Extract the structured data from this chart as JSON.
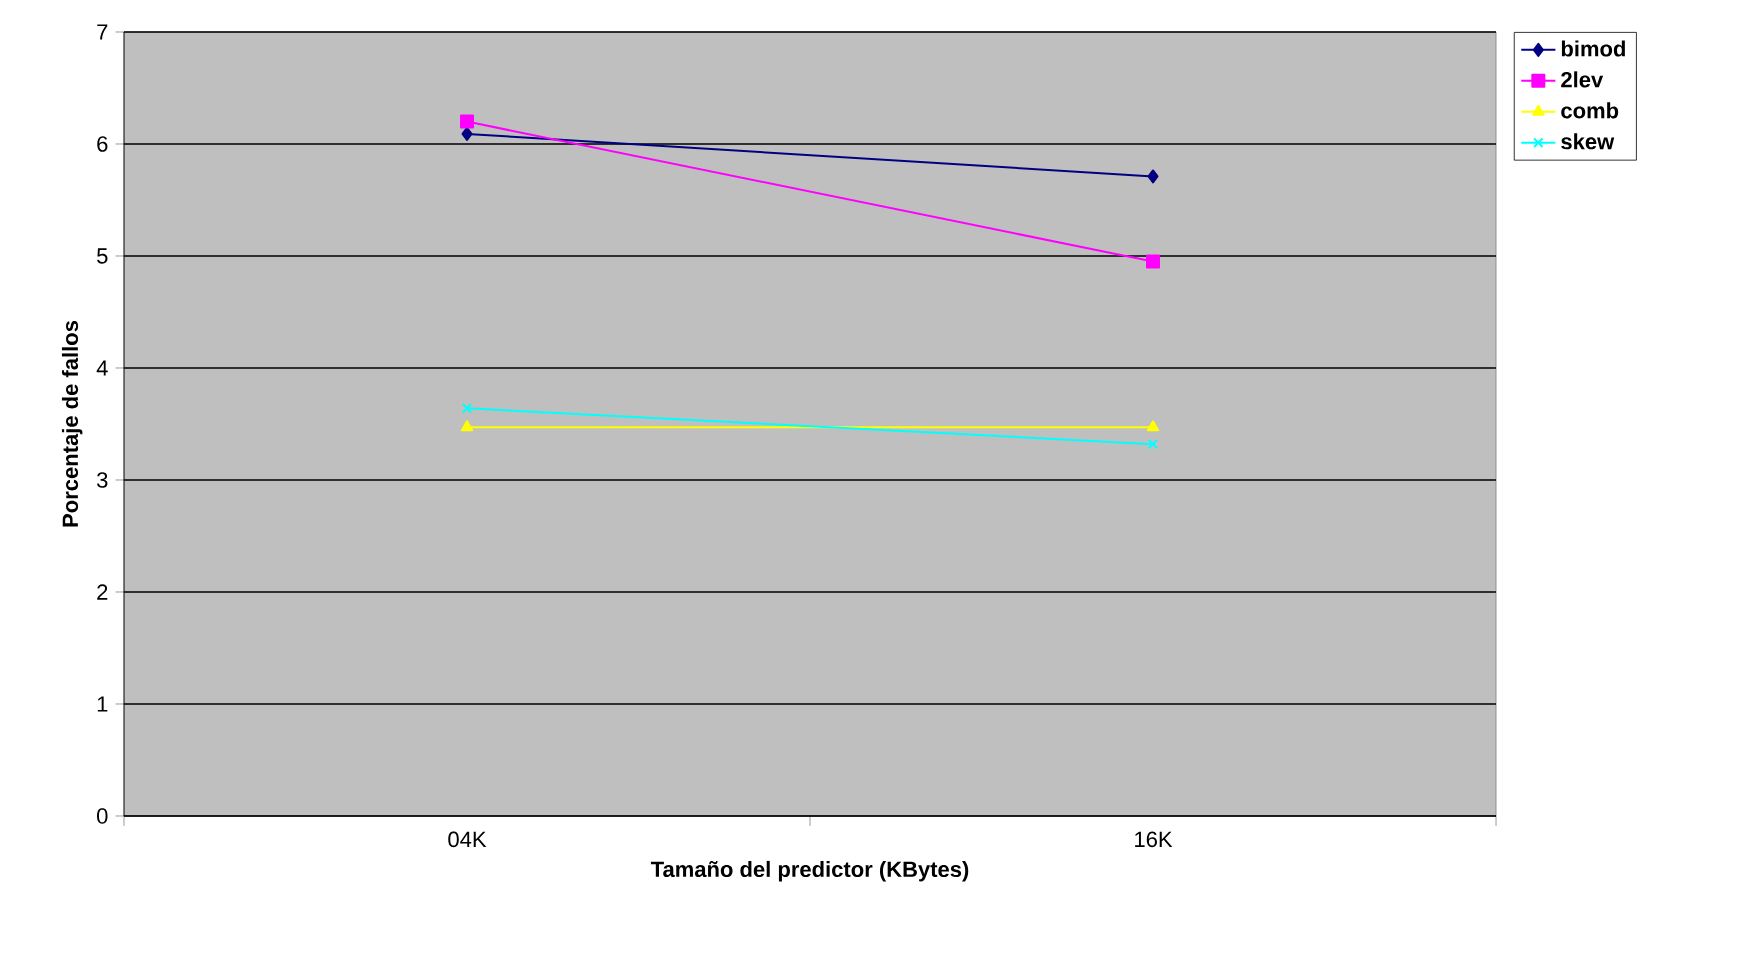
{
  "chart_data": {
    "type": "line",
    "xlabel": "Tamaño del predictor (KBytes)",
    "ylabel": "Porcentaje de fallos",
    "categories": [
      "04K",
      "16K"
    ],
    "series": [
      {
        "name": "bimod",
        "color": "#000080",
        "marker": "diamond",
        "values": [
          6.09,
          5.71
        ]
      },
      {
        "name": "2lev",
        "color": "#ff00ff",
        "marker": "square",
        "values": [
          6.2,
          4.95
        ]
      },
      {
        "name": "comb",
        "color": "#ffff00",
        "marker": "triangle",
        "values": [
          3.47,
          3.47
        ]
      },
      {
        "name": "skew",
        "color": "#00ffff",
        "marker": "cross",
        "values": [
          3.64,
          3.32
        ]
      }
    ],
    "ylim": [
      0,
      7
    ],
    "yticks": [
      0,
      1,
      2,
      3,
      4,
      5,
      6,
      7
    ],
    "grid": "y",
    "legend": "top right",
    "line_style": "solid"
  }
}
